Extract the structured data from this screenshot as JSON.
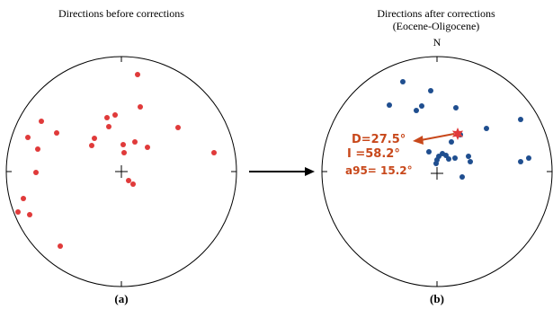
{
  "left_panel": {
    "title": "Directions before corrections",
    "label": "(a)",
    "point_color": "#e03a3a"
  },
  "right_panel": {
    "title": "Directions after corrections",
    "subtitle": "(Eocene-Oligocene)",
    "north_label": "N",
    "label": "(b)",
    "point_color": "#1f4e8f",
    "mean_color": "#e03a3a",
    "annotation_color": "#c8481b",
    "mean_stats": {
      "declination": "D=27.5°",
      "inclination": "I =58.2°",
      "alpha95": "a95= 15.2°"
    }
  },
  "arrow_color": "#000000"
}
